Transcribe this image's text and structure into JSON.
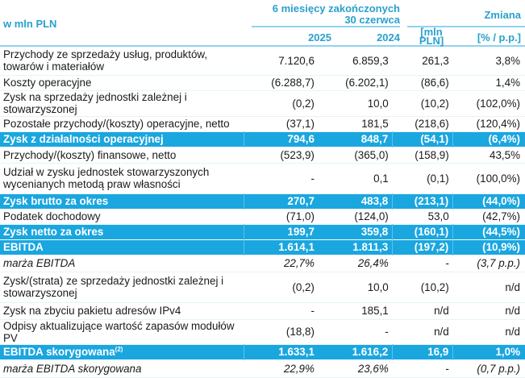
{
  "header": {
    "unit_label": "w mln PLN",
    "period_label_line1": "6 miesięcy zakończonych",
    "period_label_line2": "30 czerwca",
    "change_label": "Zmiana",
    "col_2025": "2025",
    "col_2024": "2024",
    "col_change_abs_line1": "[mln",
    "col_change_abs_line2": "PLN]",
    "col_change_pct": "[% / p.p.]"
  },
  "colors": {
    "header_text": "#2aa0cc",
    "highlight_bg": "#1aa6df",
    "rule": "#8fd3ee"
  },
  "rows": [
    {
      "label": "Przychody ze sprzedaży usług, produktów, towarów i materiałów",
      "v2025": "7.120,6",
      "v2024": "6.859,3",
      "abs": "261,3",
      "pct": "3,8%",
      "style": "normal"
    },
    {
      "label": "Koszty operacyjne",
      "v2025": "(6.288,7)",
      "v2024": "(6.202,1)",
      "abs": "(86,6)",
      "pct": "1,4%",
      "style": "normal"
    },
    {
      "label": "Zysk na sprzedaży jednostki zależnej i stowarzyszonej",
      "v2025": "(0,2)",
      "v2024": "10,0",
      "abs": "(10,2)",
      "pct": "(102,0%)",
      "style": "normal"
    },
    {
      "label": "Pozostałe przychody/(koszty) operacyjne, netto",
      "v2025": "(37,1)",
      "v2024": "181,5",
      "abs": "(218,6)",
      "pct": "(120,4%)",
      "style": "normal"
    },
    {
      "label": "Zysk z działalności operacyjnej",
      "v2025": "794,6",
      "v2024": "848,7",
      "abs": "(54,1)",
      "pct": "(6,4%)",
      "style": "highlight"
    },
    {
      "label": "Przychody/(koszty) finansowe, netto",
      "v2025": "(523,9)",
      "v2024": "(365,0)",
      "abs": "(158,9)",
      "pct": "43,5%",
      "style": "normal"
    },
    {
      "label": "Udział w zysku jednostek stowarzyszonych wycenianych metodą praw własności",
      "v2025": "-",
      "v2024": "0,1",
      "abs": "(0,1)",
      "pct": "(100,0%)",
      "style": "normal"
    },
    {
      "label": "Zysk brutto za okres",
      "v2025": "270,7",
      "v2024": "483,8",
      "abs": "(213,1)",
      "pct": "(44,0%)",
      "style": "highlight"
    },
    {
      "label": "Podatek dochodowy",
      "v2025": "(71,0)",
      "v2024": "(124,0)",
      "abs": "53,0",
      "pct": "(42,7%)",
      "style": "normal"
    },
    {
      "label": "Zysk netto za okres",
      "v2025": "199,7",
      "v2024": "359,8",
      "abs": "(160,1)",
      "pct": "(44,5%)",
      "style": "highlight"
    },
    {
      "label": "EBITDA",
      "v2025": "1.614,1",
      "v2024": "1.811,3",
      "abs": "(197,2)",
      "pct": "(10,9%)",
      "style": "highlight"
    },
    {
      "label": "marża EBITDA",
      "v2025": "22,7%",
      "v2024": "26,4%",
      "abs": "-",
      "pct": "(3,7 p.p.)",
      "style": "italic"
    },
    {
      "label": "Zysk/(strata) ze sprzedaży jednostki zależnej i stowarzyszonej",
      "v2025": "(0,2)",
      "v2024": "10,0",
      "abs": "(10,2)",
      "pct": "n/d",
      "style": "normal"
    },
    {
      "label": "Zysk na zbyciu pakietu adresów IPv4",
      "v2025": "-",
      "v2024": "185,1",
      "abs": "n/d",
      "pct": "n/d",
      "style": "normal"
    },
    {
      "label": "Odpisy aktualizujące wartość zapasów modułów PV",
      "v2025": "(18,8)",
      "v2024": "-",
      "abs": "n/d",
      "pct": "n/d",
      "style": "normal"
    },
    {
      "label": "EBITDA skorygowana",
      "label_sup": "(2)",
      "v2025": "1.633,1",
      "v2024": "1.616,2",
      "abs": "16,9",
      "pct": "1,0%",
      "style": "highlight"
    },
    {
      "label": "marża EBITDA skorygowana",
      "v2025": "22,9%",
      "v2024": "23,6%",
      "abs": "-",
      "pct": "(0,7 p.p.)",
      "style": "italic"
    }
  ]
}
